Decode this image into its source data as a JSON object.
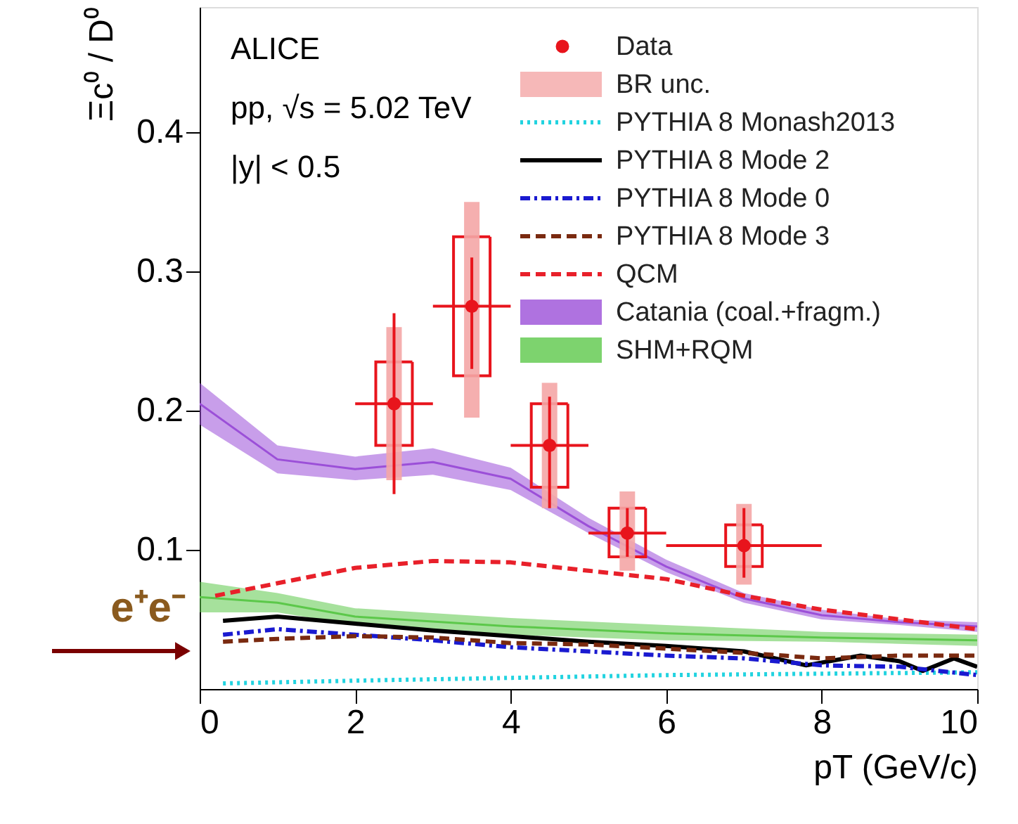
{
  "chart_data": {
    "type": "line",
    "xlabel": "pT (GeV/c)",
    "ylabel": "Ξc⁰ / D⁰",
    "xlim": [
      0,
      10
    ],
    "ylim": [
      0,
      0.49
    ],
    "xticks": [
      0,
      2,
      4,
      6,
      8,
      10
    ],
    "yticks": [
      0.1,
      0.2,
      0.3,
      0.4
    ],
    "grid": false,
    "legend": "top right",
    "annotations": [
      "ALICE",
      "pp, √s = 5.02 TeV",
      "|y| < 0.5",
      "e⁺e⁻"
    ],
    "series": [
      {
        "name": "Data",
        "type": "scatter",
        "marker": "circle",
        "color": "#e8141c",
        "x": [
          2.5,
          3.5,
          4.5,
          5.5,
          7
        ],
        "values": [
          0.205,
          0.275,
          0.175,
          0.112,
          0.103
        ],
        "errors": [
          [
            0.14,
            0.27
          ],
          [
            0.23,
            0.31
          ],
          [
            0.13,
            0.21
          ],
          [
            0.095,
            0.13
          ],
          [
            0.08,
            0.13
          ]
        ],
        "xerrors": [
          [
            2,
            3
          ],
          [
            3,
            4
          ],
          [
            4,
            5
          ],
          [
            5,
            6
          ],
          [
            6,
            8
          ]
        ]
      },
      {
        "type": "bar",
        "line_style": "solid",
        "color": "#e8141c",
        "x": [
          2.5,
          3.5,
          4.5,
          5.5,
          7
        ],
        "base": [
          0.175,
          0.225,
          0.145,
          0.095,
          0.088
        ],
        "values": [
          0.06,
          0.1,
          0.06,
          0.035,
          0.03
        ]
      },
      {
        "name": "BR unc.",
        "type": "bar",
        "color": "#f4a6a6",
        "x": [
          2.5,
          3.5,
          4.5,
          5.5,
          7
        ],
        "base": [
          0.15,
          0.195,
          0.13,
          0.085,
          0.075
        ],
        "values": [
          0.11,
          0.155,
          0.09,
          0.057,
          0.058
        ]
      },
      {
        "name": "PYTHIA 8 Monash2013",
        "line_style": "dotted",
        "color": "#22d3e0",
        "x": [
          0.3,
          2,
          4,
          5,
          6,
          8,
          10
        ],
        "values": [
          0.004,
          0.006,
          0.008,
          0.009,
          0.01,
          0.011,
          0.012
        ]
      },
      {
        "name": "PYTHIA 8 Mode 2",
        "line_style": "solid",
        "color": "#000000",
        "x": [
          0.3,
          1,
          2,
          3,
          4,
          5,
          6,
          7,
          7.8,
          8.5,
          9,
          9.3,
          9.7,
          10
        ],
        "values": [
          0.049,
          0.052,
          0.047,
          0.042,
          0.038,
          0.034,
          0.031,
          0.027,
          0.017,
          0.024,
          0.02,
          0.013,
          0.022,
          0.016
        ]
      },
      {
        "name": "PYTHIA 8 Mode 0",
        "line_style": "dashdot",
        "color": "#1a1ad0",
        "x": [
          0.3,
          1,
          2,
          3,
          4,
          5,
          6,
          7,
          8,
          9,
          10
        ],
        "values": [
          0.039,
          0.043,
          0.039,
          0.035,
          0.03,
          0.027,
          0.024,
          0.022,
          0.017,
          0.016,
          0.01
        ]
      },
      {
        "name": "PYTHIA 8 Mode 3",
        "line_style": "dashed",
        "color": "#7a2a10",
        "x": [
          0.3,
          1,
          2,
          3,
          4,
          5,
          6,
          7,
          8,
          9,
          10
        ],
        "values": [
          0.034,
          0.036,
          0.038,
          0.037,
          0.033,
          0.032,
          0.029,
          0.026,
          0.022,
          0.024,
          0.024
        ]
      },
      {
        "name": "QCM",
        "line_style": "dashed",
        "color": "#e8202a",
        "x": [
          0.2,
          1,
          2,
          3,
          4,
          5,
          6,
          7,
          8,
          9,
          10
        ],
        "values": [
          0.067,
          0.076,
          0.087,
          0.092,
          0.091,
          0.085,
          0.079,
          0.067,
          0.057,
          0.05,
          0.043
        ]
      },
      {
        "name": "Catania (coal.+fragm.)",
        "color": "#9b4fd8",
        "x": [
          0,
          1,
          2,
          3,
          4,
          5,
          6,
          7,
          8,
          9,
          10
        ],
        "values": [
          0.205,
          0.165,
          0.158,
          0.163,
          0.151,
          0.117,
          0.088,
          0.065,
          0.053,
          0.048,
          0.045
        ],
        "lower": [
          0.19,
          0.155,
          0.15,
          0.154,
          0.143,
          0.112,
          0.084,
          0.062,
          0.05,
          0.046,
          0.041
        ],
        "upper": [
          0.22,
          0.175,
          0.167,
          0.173,
          0.159,
          0.123,
          0.093,
          0.069,
          0.057,
          0.05,
          0.048
        ]
      },
      {
        "name": "SHM+RQM",
        "color": "#5cc84a",
        "x": [
          0,
          1,
          2,
          4,
          6,
          8,
          10
        ],
        "values": [
          0.066,
          0.062,
          0.052,
          0.045,
          0.04,
          0.037,
          0.035
        ],
        "lower": [
          0.055,
          0.055,
          0.046,
          0.039,
          0.035,
          0.034,
          0.031
        ],
        "upper": [
          0.077,
          0.069,
          0.058,
          0.051,
          0.046,
          0.041,
          0.039
        ]
      }
    ]
  }
}
